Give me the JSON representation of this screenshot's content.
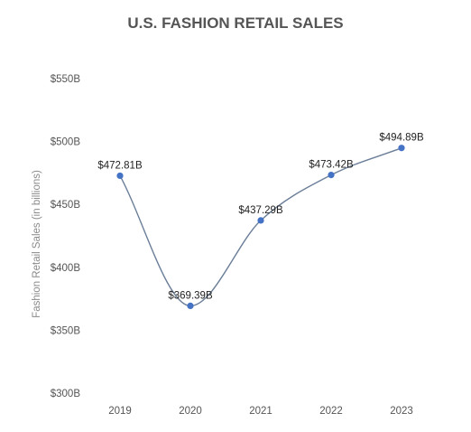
{
  "chart_data": {
    "type": "line",
    "title": "U.S. FASHION RETAIL SALES",
    "xlabel": "",
    "ylabel": "Fashion Retail Sales (in billions)",
    "categories": [
      "2019",
      "2020",
      "2021",
      "2022",
      "2023"
    ],
    "series": [
      {
        "values": [
          472.81,
          369.39,
          437.29,
          473.42,
          494.89
        ],
        "labels": [
          "$472.81B",
          "$369.39B",
          "$437.29B",
          "$473.42B",
          "$494.89B"
        ]
      }
    ],
    "ylim": [
      300,
      550
    ],
    "yticks": [
      300,
      350,
      400,
      450,
      500,
      550
    ],
    "ytick_labels": [
      "$300B",
      "$350B",
      "$400B",
      "$450B",
      "$500B",
      "$550B"
    ],
    "grid": false,
    "legend": "none",
    "line_color": "#6b7f99",
    "marker_color": "#4472c4",
    "smooth": true
  }
}
